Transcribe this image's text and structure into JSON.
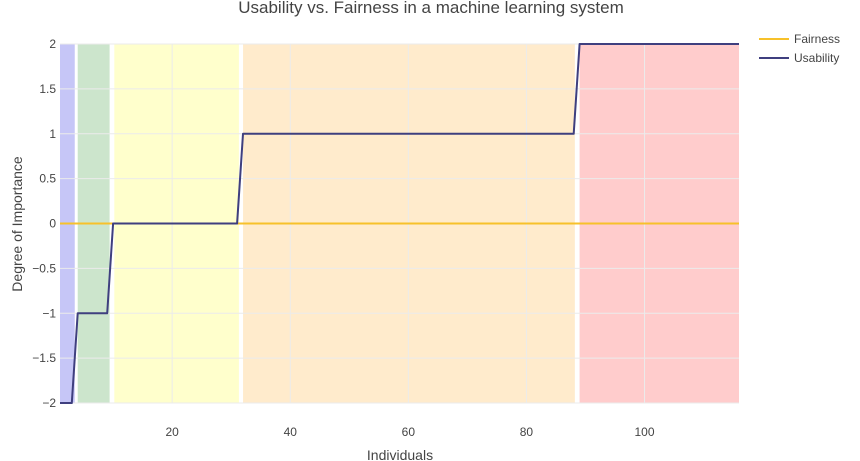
{
  "chart_data": {
    "type": "line",
    "title": "Usability vs. Fairness in a machine learning system",
    "xlabel": "Individuals",
    "ylabel": "Degree of Importance",
    "xlim": [
      1,
      116
    ],
    "ylim": [
      -2,
      2
    ],
    "x_ticks": [
      20,
      40,
      60,
      80,
      100
    ],
    "y_ticks": [
      -2,
      -1.5,
      -1,
      -0.5,
      0,
      0.5,
      1,
      1.5,
      2
    ],
    "y_tick_labels": [
      "−2",
      "−1.5",
      "−1",
      "−0.5",
      "0",
      "0.5",
      "1",
      "1.5",
      "2"
    ],
    "grid": true,
    "legend_position": "top-right",
    "bands": [
      {
        "x0": 1,
        "x1": 3.5,
        "color": "#c6c6f7"
      },
      {
        "x0": 4,
        "x1": 9.4,
        "color": "#cce5cc"
      },
      {
        "x0": 10.2,
        "x1": 31.3,
        "color": "#ffffcc"
      },
      {
        "x0": 32,
        "x1": 88.2,
        "color": "#ffebcc"
      },
      {
        "x0": 89,
        "x1": 116,
        "color": "#ffcccc"
      }
    ],
    "series": [
      {
        "name": "Fairness",
        "color": "#f7c12a",
        "x": [
          1,
          116
        ],
        "y": [
          0,
          0
        ]
      },
      {
        "name": "Usability",
        "color": "#3f3f7f",
        "x": [
          1,
          3,
          4,
          9,
          10,
          31,
          32,
          88,
          89,
          116
        ],
        "y": [
          -2,
          -2,
          -1,
          -1,
          0,
          0,
          1,
          1,
          2,
          2
        ]
      }
    ]
  }
}
